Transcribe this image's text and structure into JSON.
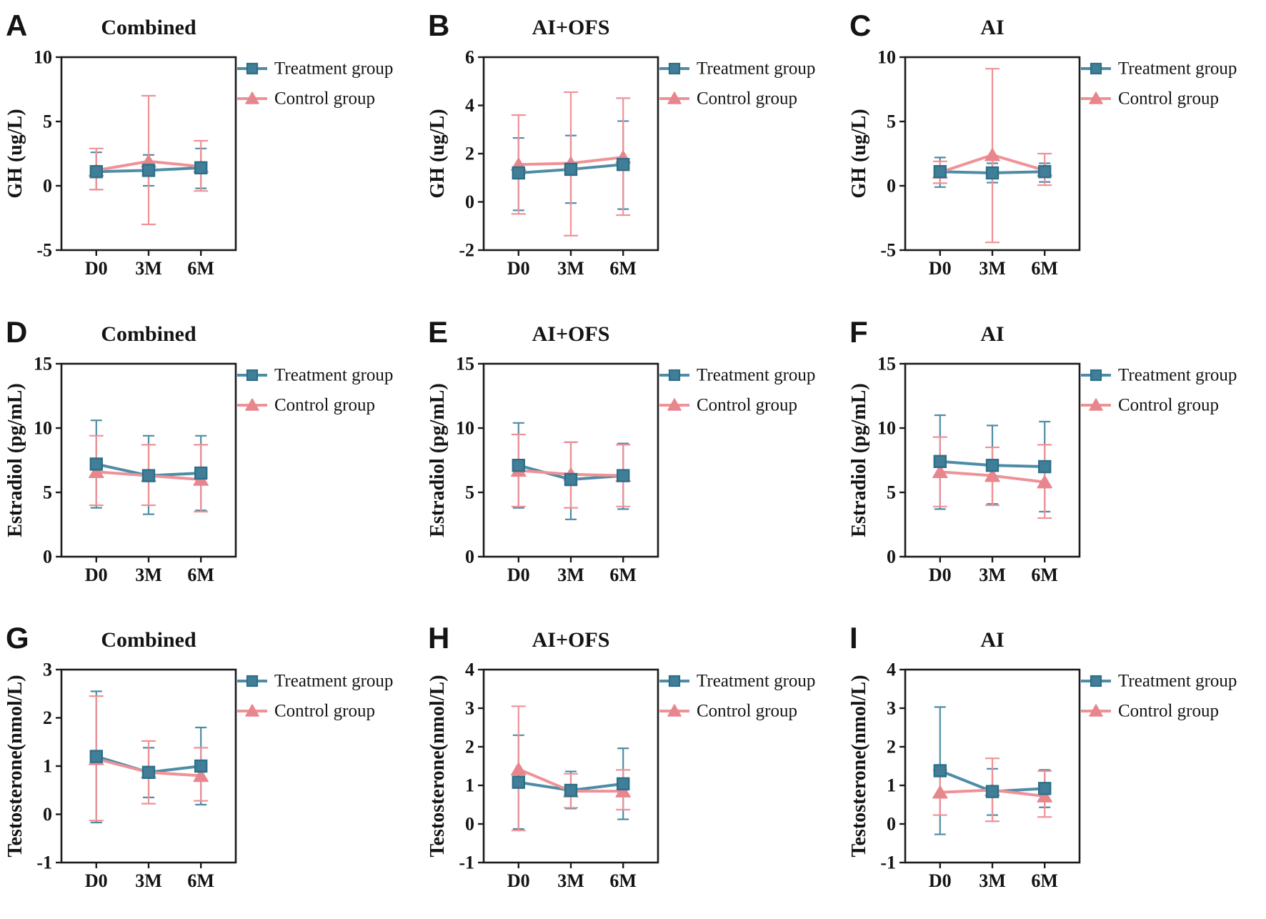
{
  "figure": {
    "x_labels": [
      "D0",
      "3M",
      "6M"
    ],
    "colors": {
      "treatment_line": "#4E8CA6",
      "treatment_fill": "#417E98",
      "treatment_edge": "#2E6F88",
      "control_line": "#EF9297",
      "control_fill": "#E8868D",
      "axis": "#1B1B1B"
    }
  },
  "chart_data": [
    {
      "type": "line",
      "letter": "A",
      "title": "Combined",
      "ylabel": "GH (ug/L)",
      "ylim": [
        -5,
        10
      ],
      "yticks": [
        -5,
        0,
        5,
        10
      ],
      "categories": [
        "D0",
        "3M",
        "6M"
      ],
      "series": [
        {
          "name": "Treatment group",
          "values": [
            1.1,
            1.2,
            1.4
          ],
          "err_low": [
            -0.3,
            0.0,
            -0.2
          ],
          "err_high": [
            2.6,
            2.4,
            2.9
          ]
        },
        {
          "name": "Control group",
          "values": [
            1.2,
            1.9,
            1.5
          ],
          "err_low": [
            -0.3,
            -3.0,
            -0.4
          ],
          "err_high": [
            2.9,
            7.0,
            3.5
          ]
        }
      ]
    },
    {
      "type": "line",
      "letter": "B",
      "title": "AI+OFS",
      "ylabel": "GH (ug/L)",
      "ylim": [
        -2,
        6
      ],
      "yticks": [
        -2,
        0,
        2,
        4,
        6
      ],
      "categories": [
        "D0",
        "3M",
        "6M"
      ],
      "series": [
        {
          "name": "Treatment group",
          "values": [
            1.2,
            1.35,
            1.55
          ],
          "err_low": [
            -0.35,
            -0.05,
            -0.3
          ],
          "err_high": [
            2.65,
            2.75,
            3.35
          ]
        },
        {
          "name": "Control group",
          "values": [
            1.55,
            1.6,
            1.85
          ],
          "err_low": [
            -0.5,
            -1.4,
            -0.55
          ],
          "err_high": [
            3.6,
            4.55,
            4.3
          ]
        }
      ]
    },
    {
      "type": "line",
      "letter": "C",
      "title": "AI",
      "ylabel": "GH (ug/L)",
      "ylim": [
        -5,
        10
      ],
      "yticks": [
        -5,
        0,
        5,
        10
      ],
      "categories": [
        "D0",
        "3M",
        "6M"
      ],
      "series": [
        {
          "name": "Treatment group",
          "values": [
            1.1,
            1.0,
            1.1
          ],
          "err_low": [
            -0.1,
            0.25,
            0.3
          ],
          "err_high": [
            2.2,
            1.75,
            1.75
          ]
        },
        {
          "name": "Control group",
          "values": [
            1.05,
            2.4,
            1.2
          ],
          "err_low": [
            0.2,
            -4.4,
            0.05
          ],
          "err_high": [
            1.9,
            9.1,
            2.5
          ]
        }
      ]
    },
    {
      "type": "line",
      "letter": "D",
      "title": "Combined",
      "ylabel": "Estradiol (pg/mL)",
      "ylim": [
        0,
        15
      ],
      "yticks": [
        0,
        5,
        10,
        15
      ],
      "categories": [
        "D0",
        "3M",
        "6M"
      ],
      "series": [
        {
          "name": "Treatment group",
          "values": [
            7.2,
            6.3,
            6.5
          ],
          "err_low": [
            3.8,
            3.3,
            3.6
          ],
          "err_high": [
            10.6,
            9.4,
            9.4
          ]
        },
        {
          "name": "Control group",
          "values": [
            6.6,
            6.3,
            6.0
          ],
          "err_low": [
            4.0,
            4.0,
            3.5
          ],
          "err_high": [
            9.4,
            8.7,
            8.7
          ]
        }
      ]
    },
    {
      "type": "line",
      "letter": "E",
      "title": "AI+OFS",
      "ylabel": "Estradiol (pg/mL)",
      "ylim": [
        0,
        15
      ],
      "yticks": [
        0,
        5,
        10,
        15
      ],
      "categories": [
        "D0",
        "3M",
        "6M"
      ],
      "series": [
        {
          "name": "Treatment group",
          "values": [
            7.1,
            6.0,
            6.3
          ],
          "err_low": [
            3.8,
            2.9,
            3.7
          ],
          "err_high": [
            10.4,
            8.9,
            8.8
          ]
        },
        {
          "name": "Control group",
          "values": [
            6.7,
            6.4,
            6.3
          ],
          "err_low": [
            3.9,
            3.8,
            3.9
          ],
          "err_high": [
            9.5,
            8.9,
            8.7
          ]
        }
      ]
    },
    {
      "type": "line",
      "letter": "F",
      "title": "AI",
      "ylabel": "Estradiol (pg/mL)",
      "ylim": [
        0,
        15
      ],
      "yticks": [
        0,
        5,
        10,
        15
      ],
      "categories": [
        "D0",
        "3M",
        "6M"
      ],
      "series": [
        {
          "name": "Treatment group",
          "values": [
            7.4,
            7.1,
            7.0
          ],
          "err_low": [
            3.7,
            4.1,
            3.5
          ],
          "err_high": [
            11.0,
            10.2,
            10.5
          ]
        },
        {
          "name": "Control group",
          "values": [
            6.6,
            6.3,
            5.8
          ],
          "err_low": [
            3.9,
            4.0,
            3.0
          ],
          "err_high": [
            9.3,
            8.5,
            8.7
          ]
        }
      ]
    },
    {
      "type": "line",
      "letter": "G",
      "title": "Combined",
      "ylabel": "Testosterone(nmol/L)",
      "ylim": [
        -1,
        3
      ],
      "yticks": [
        -1,
        0,
        1,
        2,
        3
      ],
      "categories": [
        "D0",
        "3M",
        "6M"
      ],
      "series": [
        {
          "name": "Treatment group",
          "values": [
            1.2,
            0.87,
            1.0
          ],
          "err_low": [
            -0.17,
            0.35,
            0.2
          ],
          "err_high": [
            2.55,
            1.38,
            1.8
          ]
        },
        {
          "name": "Control group",
          "values": [
            1.15,
            0.87,
            0.8
          ],
          "err_low": [
            -0.13,
            0.22,
            0.28
          ],
          "err_high": [
            2.45,
            1.52,
            1.38
          ]
        }
      ]
    },
    {
      "type": "line",
      "letter": "H",
      "title": "AI+OFS",
      "ylabel": "Testosterone(nmol/L)",
      "ylim": [
        -1,
        4
      ],
      "yticks": [
        -1,
        0,
        1,
        2,
        3,
        4
      ],
      "categories": [
        "D0",
        "3M",
        "6M"
      ],
      "series": [
        {
          "name": "Treatment group",
          "values": [
            1.08,
            0.87,
            1.04
          ],
          "err_low": [
            -0.13,
            0.4,
            0.12
          ],
          "err_high": [
            2.3,
            1.36,
            1.96
          ]
        },
        {
          "name": "Control group",
          "values": [
            1.42,
            0.85,
            0.85
          ],
          "err_low": [
            -0.17,
            0.42,
            0.37
          ],
          "err_high": [
            3.05,
            1.3,
            1.4
          ]
        }
      ]
    },
    {
      "type": "line",
      "letter": "I",
      "title": "AI",
      "ylabel": "Testosterone(nmol/L)",
      "ylim": [
        -1,
        4
      ],
      "yticks": [
        -1,
        0,
        1,
        2,
        3,
        4
      ],
      "categories": [
        "D0",
        "3M",
        "6M"
      ],
      "series": [
        {
          "name": "Treatment group",
          "values": [
            1.38,
            0.84,
            0.92
          ],
          "err_low": [
            -0.27,
            0.23,
            0.43
          ],
          "err_high": [
            3.03,
            1.43,
            1.4
          ]
        },
        {
          "name": "Control group",
          "values": [
            0.82,
            0.88,
            0.72
          ],
          "err_low": [
            0.23,
            0.07,
            0.18
          ],
          "err_high": [
            1.4,
            1.7,
            1.37
          ]
        }
      ]
    }
  ]
}
